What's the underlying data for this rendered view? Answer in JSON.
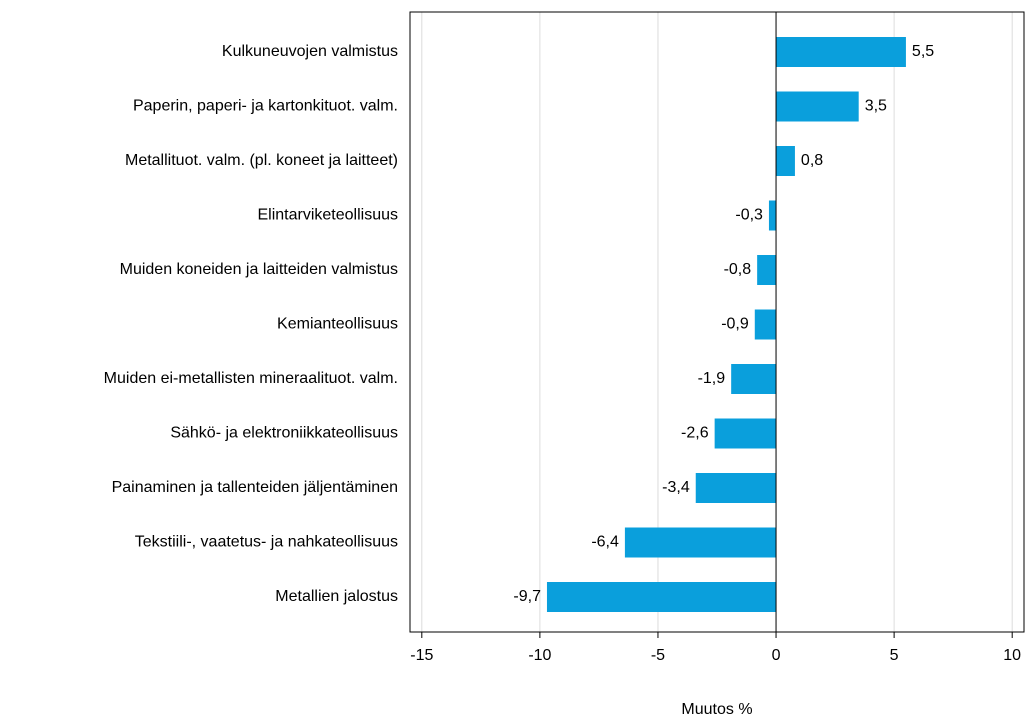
{
  "chart_data": {
    "type": "bar",
    "orientation": "horizontal",
    "categories": [
      "Kulkuneuvojen valmistus",
      "Paperin, paperi- ja kartonkituot. valm.",
      "Metallituot. valm. (pl. koneet ja laitteet)",
      "Elintarviketeollisuus",
      "Muiden koneiden ja laitteiden valmistus",
      "Kemianteollisuus",
      "Muiden ei-metallisten mineraalituot. valm.",
      "Sähkö- ja elektroniikkateollisuus",
      "Painaminen ja tallenteiden jäljentäminen",
      "Tekstiili-, vaatetus- ja nahkateollisuus",
      "Metallien jalostus"
    ],
    "values": [
      5.5,
      3.5,
      0.8,
      -0.3,
      -0.8,
      -0.9,
      -1.9,
      -2.6,
      -3.4,
      -6.4,
      -9.7
    ],
    "value_labels": [
      "5,5",
      "3,5",
      "0,8",
      "-0,3",
      "-0,8",
      "-0,9",
      "-1,9",
      "-2,6",
      "-3,4",
      "-6,4",
      "-9,7"
    ],
    "color": "#0a9fdc",
    "xlabel": "Muutos %",
    "xlim": [
      -15.5,
      10.5
    ],
    "xticks": [
      -15,
      -10,
      -5,
      0,
      5,
      10
    ],
    "grid": true
  }
}
